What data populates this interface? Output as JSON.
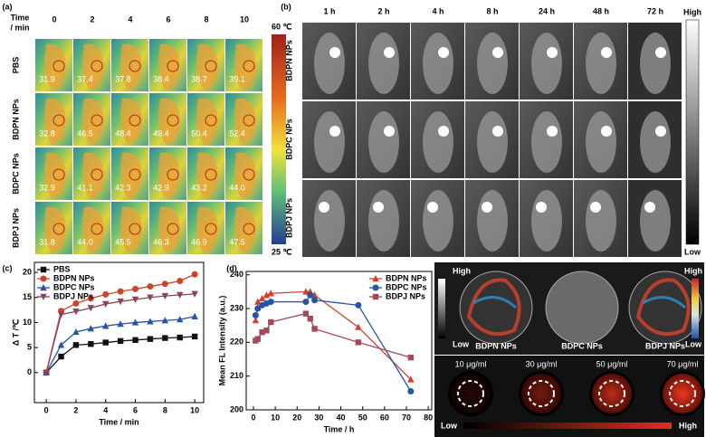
{
  "panel_labels": [
    "(a)",
    "(b)",
    "(c)",
    "(d)",
    "(e)"
  ],
  "thermal": {
    "header": [
      "Time",
      "/ min"
    ],
    "times": [
      "0",
      "2",
      "4",
      "6",
      "8",
      "10"
    ],
    "rows": [
      {
        "label": "PBS",
        "temps": [
          "31.9",
          "37.4",
          "37.8",
          "38.4",
          "38.7",
          "39.1"
        ]
      },
      {
        "label": "BDPN NPs",
        "temps": [
          "32.8",
          "46.5",
          "48.4",
          "49.4",
          "50.4",
          "52.4"
        ]
      },
      {
        "label": "BDPC NPs",
        "temps": [
          "32.9",
          "41.1",
          "42.3",
          "42.9",
          "43.2",
          "44.0"
        ]
      },
      {
        "label": "BDPJ NPs",
        "temps": [
          "31.8",
          "44.0",
          "45.5",
          "46.3",
          "46.9",
          "47.5"
        ]
      }
    ],
    "colorbar": [
      "60 ℃",
      "25 ℃"
    ]
  },
  "fluorescence": {
    "times": [
      "1 h",
      "2 h",
      "4 h",
      "8 h",
      "24 h",
      "48 h",
      "72 h"
    ],
    "rows": [
      "BDPN NPs",
      "BDPC NPs",
      "BDPJ NPs"
    ],
    "colorbar": [
      "High",
      "Low"
    ]
  },
  "phantom": {
    "left_bar": [
      "High",
      "Low"
    ],
    "right_bar": [
      "High",
      "Low"
    ],
    "samples": [
      "BDPN NPs",
      "BDPC NPs",
      "BDPJ NPs"
    ],
    "concentrations": [
      "10 μg/ml",
      "30 μg/ml",
      "50 μg/ml",
      "70 μg/ml"
    ],
    "bottom_bar": [
      "Low",
      "High"
    ]
  },
  "chart_data": [
    {
      "type": "line",
      "xlabel": "Time / min",
      "ylabel": "Δ T /℃",
      "x": [
        0,
        1,
        2,
        3,
        4,
        5,
        6,
        7,
        8,
        9,
        10
      ],
      "xlim": [
        -0.8,
        10.6
      ],
      "xticks": [
        0,
        2,
        4,
        6,
        8,
        10
      ],
      "ylim": [
        -6,
        22
      ],
      "yticks": [
        0,
        5,
        10,
        15,
        20
      ],
      "legend": "upper-left",
      "series": [
        {
          "name": "PBS",
          "color": "#111111",
          "marker": "square",
          "values": [
            0,
            3.2,
            5.5,
            5.7,
            6.0,
            6.3,
            6.5,
            6.7,
            6.9,
            7.0,
            7.2
          ]
        },
        {
          "name": "BDPN NPs",
          "color": "#d0412b",
          "marker": "circle",
          "values": [
            0,
            12.3,
            13.8,
            14.8,
            15.6,
            16.2,
            16.7,
            17.2,
            17.7,
            18.3,
            19.6
          ]
        },
        {
          "name": "BDPC NPs",
          "color": "#2455a6",
          "marker": "triangle-up",
          "values": [
            0,
            5.5,
            8.1,
            8.8,
            9.3,
            9.7,
            10.0,
            10.2,
            10.4,
            10.6,
            11.2
          ]
        },
        {
          "name": "BDPJ NPs",
          "color": "#8a4457",
          "marker": "triangle-down",
          "values": [
            0,
            11.6,
            12.2,
            12.9,
            13.7,
            14.2,
            14.6,
            15.0,
            15.3,
            15.5,
            15.7
          ]
        }
      ]
    },
    {
      "type": "line",
      "xlabel": "Time / h",
      "ylabel": "Mean FL Intensity (a.u.)",
      "x": [
        1,
        2,
        4,
        6,
        8,
        24,
        26,
        28,
        48,
        72
      ],
      "xlim": [
        -3.3,
        81.6
      ],
      "xticks": [
        0,
        10,
        20,
        30,
        40,
        50,
        60,
        70,
        80
      ],
      "ylim": [
        200,
        241
      ],
      "yticks": [
        200,
        210,
        220,
        230,
        240
      ],
      "legend": "upper-right",
      "series": [
        {
          "name": "BDPN NPs",
          "color": "#d0412b",
          "marker": "triangle-up",
          "values": [
            226.5,
            232,
            233,
            234,
            234.5,
            235,
            235,
            234,
            224.5,
            209
          ]
        },
        {
          "name": "BDPC NPs",
          "color": "#2455a6",
          "marker": "circle",
          "values": [
            228,
            230,
            231,
            231.5,
            232,
            232,
            234,
            232.5,
            231,
            205.5
          ]
        },
        {
          "name": "BDPJ NPs",
          "color": "#a4495a",
          "marker": "square",
          "values": [
            220.5,
            221,
            223,
            223.5,
            226,
            228.5,
            227,
            224,
            220,
            215.5
          ]
        }
      ]
    }
  ]
}
